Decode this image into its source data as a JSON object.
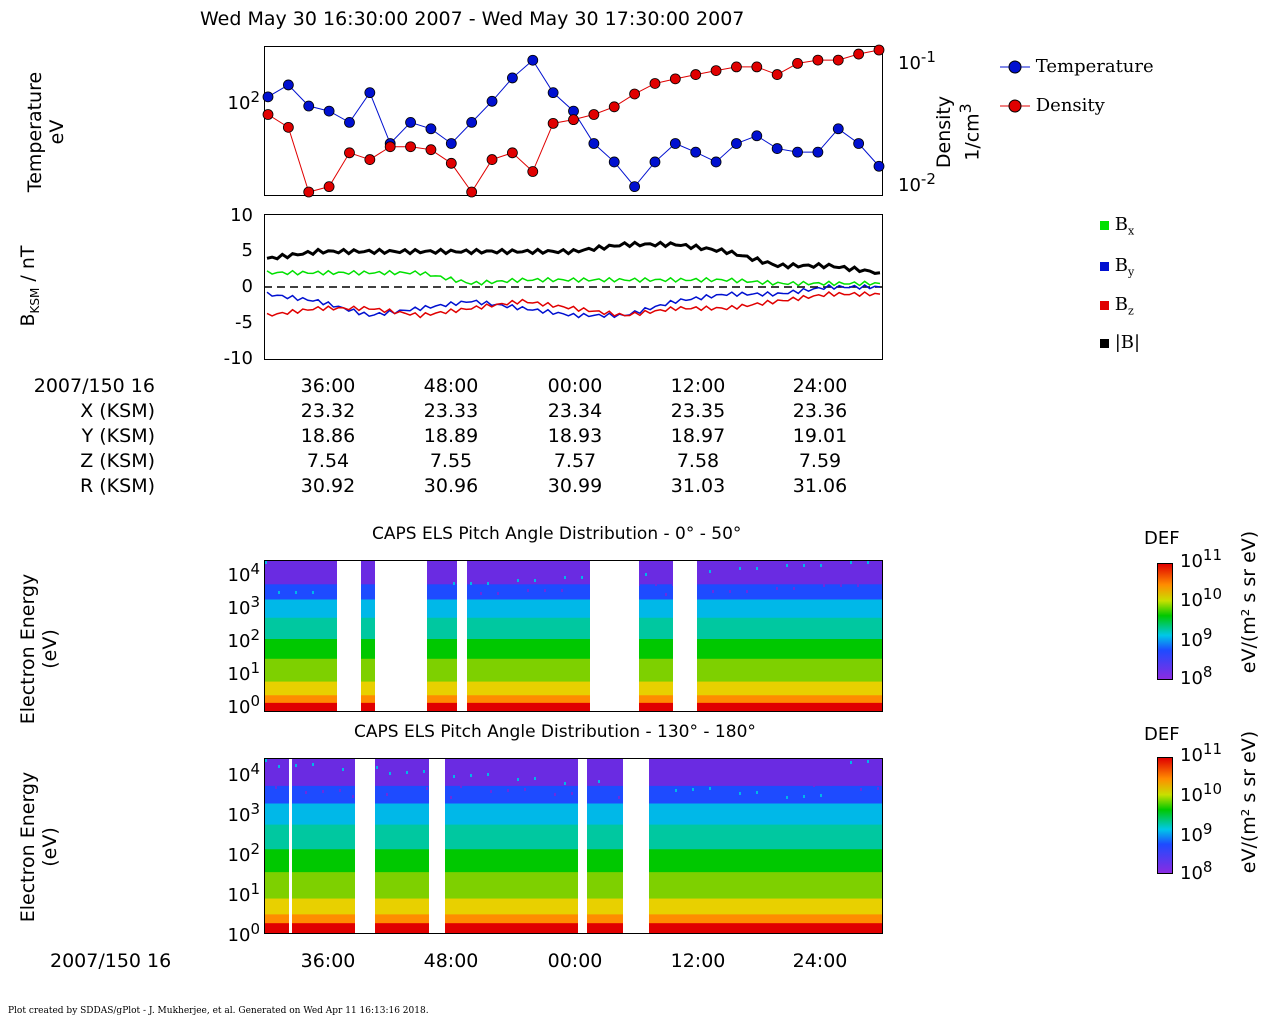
{
  "title": "Wed May 30 16:30:00 2007 - Wed May 30 17:30:00 2007",
  "panel1": {
    "ylabel_left": [
      "Temperature",
      "eV"
    ],
    "ylabel_right": [
      "Density",
      "1/cm3"
    ],
    "left_tick": "10^2",
    "right_ticks": [
      "10^-1",
      "10^-2"
    ],
    "legend": [
      {
        "name": "Temperature",
        "color": "#0010d0"
      },
      {
        "name": "Density",
        "color": "#e00000"
      }
    ]
  },
  "panel2": {
    "ylabel": "BKSM / nT",
    "yticks": [
      "10",
      "5",
      "0",
      "-5",
      "-10"
    ],
    "legend": [
      {
        "name": "Bx",
        "color": "#00e000"
      },
      {
        "name": "By",
        "color": "#0010d0"
      },
      {
        "name": "Bz",
        "color": "#e00000"
      },
      {
        "name": "|B|",
        "color": "#000000"
      }
    ]
  },
  "ephemeris": {
    "rows": [
      {
        "label": "2007/150 16",
        "values": [
          "36:00",
          "48:00",
          "00:00",
          "12:00",
          "24:00"
        ]
      },
      {
        "label": "X (KSM)",
        "values": [
          "23.32",
          "23.33",
          "23.34",
          "23.35",
          "23.36"
        ]
      },
      {
        "label": "Y (KSM)",
        "values": [
          "18.86",
          "18.89",
          "18.93",
          "18.97",
          "19.01"
        ]
      },
      {
        "label": "Z (KSM)",
        "values": [
          "7.54",
          "7.55",
          "7.57",
          "7.58",
          "7.59"
        ]
      },
      {
        "label": "R (KSM)",
        "values": [
          "30.92",
          "30.96",
          "30.99",
          "31.03",
          "31.06"
        ]
      }
    ]
  },
  "spectrogram1": {
    "title": "CAPS ELS Pitch Angle Distribution - 0° - 50°",
    "ylabel": [
      "Electron Energy",
      "(eV)"
    ],
    "yticks": [
      "10^4",
      "10^3",
      "10^2",
      "10^1",
      "10^0"
    ],
    "colorbar_title": "DEF",
    "colorbar_ticks": [
      "10^11",
      "10^10",
      "10^9",
      "10^8"
    ],
    "colorbar_unit": "eV/(m² s sr eV)"
  },
  "spectrogram2": {
    "title": "CAPS ELS Pitch Angle Distribution - 130° - 180°",
    "ylabel": [
      "Electron Energy",
      "(eV)"
    ],
    "yticks": [
      "10^4",
      "10^3",
      "10^2",
      "10^1",
      "10^0"
    ],
    "colorbar_title": "DEF",
    "colorbar_ticks": [
      "10^11",
      "10^10",
      "10^9",
      "10^8"
    ],
    "colorbar_unit": "eV/(m² s sr eV)"
  },
  "bottom_axis": {
    "label": "2007/150 16",
    "ticks": [
      "36:00",
      "48:00",
      "00:00",
      "12:00",
      "24:00"
    ]
  },
  "footnote": "Plot created by SDDAS/gPlot - J. Mukherjee, et al.  Generated on Wed Apr 11 16:13:16 2018.",
  "chart_data": [
    {
      "type": "line",
      "title": "Wed May 30 16:30:00 2007 - Wed May 30 17:30:00 2007",
      "xlabel": "",
      "ylabel": "Temperature eV",
      "y2label": "Density 1/cm3",
      "yscale": "log",
      "series": [
        {
          "name": "Temperature",
          "color": "#0010d0",
          "x_minutes": [
            0,
            2,
            4,
            6,
            8,
            10,
            12,
            14,
            16,
            18,
            20,
            22,
            24,
            26,
            28,
            30,
            32,
            34,
            36,
            38,
            40,
            42,
            44,
            46,
            48,
            50,
            52,
            54,
            56,
            58,
            60
          ],
          "values": [
            85,
            100,
            75,
            70,
            60,
            90,
            45,
            60,
            55,
            45,
            60,
            80,
            110,
            140,
            90,
            70,
            45,
            35,
            25,
            35,
            45,
            40,
            35,
            45,
            50,
            42,
            40,
            40,
            55,
            45,
            33
          ]
        },
        {
          "name": "Density",
          "color": "#e00000",
          "x_minutes": [
            0,
            2,
            4,
            6,
            8,
            10,
            12,
            14,
            16,
            18,
            20,
            22,
            24,
            26,
            28,
            30,
            32,
            34,
            36,
            38,
            40,
            42,
            44,
            46,
            48,
            50,
            52,
            54,
            56,
            58,
            60
          ],
          "values": [
            0.035,
            0.028,
            0.009,
            0.01,
            0.018,
            0.016,
            0.02,
            0.02,
            0.019,
            0.015,
            0.009,
            0.016,
            0.018,
            0.013,
            0.03,
            0.032,
            0.035,
            0.04,
            0.05,
            0.06,
            0.065,
            0.07,
            0.075,
            0.08,
            0.08,
            0.07,
            0.085,
            0.09,
            0.09,
            0.1,
            0.11
          ]
        }
      ]
    },
    {
      "type": "line",
      "ylabel": "BKSM / nT",
      "ylim": [
        -10,
        10
      ],
      "series": [
        {
          "name": "Bx",
          "color": "#00e000",
          "x_minutes": [
            0,
            5,
            10,
            15,
            20,
            25,
            30,
            35,
            40,
            45,
            50,
            55,
            60
          ],
          "values": [
            2,
            2,
            2,
            2,
            0.5,
            1,
            1,
            1,
            1,
            1,
            0.5,
            0.5,
            0.5
          ]
        },
        {
          "name": "By",
          "color": "#0010d0",
          "x_minutes": [
            0,
            5,
            10,
            15,
            20,
            25,
            30,
            35,
            40,
            45,
            50,
            55,
            60
          ],
          "values": [
            -1,
            -2,
            -4,
            -3,
            -2,
            -3,
            -4,
            -4,
            -2,
            -1,
            -1,
            0,
            0
          ]
        },
        {
          "name": "Bz",
          "color": "#e00000",
          "x_minutes": [
            0,
            5,
            10,
            15,
            20,
            25,
            30,
            35,
            40,
            45,
            50,
            55,
            60
          ],
          "values": [
            -4,
            -3,
            -3,
            -4,
            -3,
            -2,
            -3,
            -4,
            -3,
            -3,
            -2,
            -1,
            -1
          ]
        },
        {
          "name": "|B|",
          "color": "#000000",
          "x_minutes": [
            0,
            5,
            10,
            15,
            20,
            25,
            30,
            35,
            40,
            45,
            50,
            55,
            60
          ],
          "values": [
            4,
            5,
            5,
            5,
            5,
            5,
            5,
            6,
            6,
            5,
            3,
            3,
            2
          ]
        }
      ]
    }
  ]
}
